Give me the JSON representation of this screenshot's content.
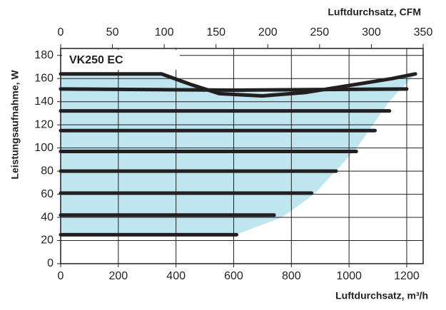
{
  "chart_data": {
    "type": "line",
    "title": "VK250 EC",
    "xlabel": "Luftdurchsatz, m³/h",
    "x2label": "Luftdurchsatz, CFM",
    "ylabel": "Leistungsaufnahme, W",
    "xlim": [
      0,
      1257
    ],
    "xticks": [
      0,
      200,
      400,
      600,
      800,
      1000,
      1200
    ],
    "x2lim": [
      0,
      350
    ],
    "x2ticks": [
      0,
      50,
      100,
      150,
      200,
      250,
      300,
      350
    ],
    "ylim": [
      0,
      186
    ],
    "yticks": [
      0,
      20,
      40,
      60,
      80,
      100,
      120,
      140,
      160,
      180
    ],
    "grid": true,
    "line_color": "#231f20",
    "region": {
      "color": "#bfe6ee",
      "x": [
        0,
        0,
        350,
        450,
        550,
        700,
        850,
        1000,
        1150,
        1230,
        1138,
        1027,
        879,
        767,
        606
      ],
      "values": [
        25,
        164,
        164,
        155,
        150,
        148,
        150,
        155,
        160,
        164,
        140,
        100,
        60,
        40,
        25
      ]
    },
    "lines": [
      {
        "x": [
          0,
          610
        ],
        "values": [
          25,
          25
        ]
      },
      {
        "x": [
          0,
          740
        ],
        "values": [
          42,
          42
        ]
      },
      {
        "x": [
          0,
          870
        ],
        "values": [
          61,
          61
        ]
      },
      {
        "x": [
          0,
          955
        ],
        "values": [
          80,
          80
        ]
      },
      {
        "x": [
          0,
          1025
        ],
        "values": [
          97,
          97
        ]
      },
      {
        "x": [
          0,
          1090
        ],
        "values": [
          115,
          115
        ]
      },
      {
        "x": [
          0,
          1140
        ],
        "values": [
          132,
          132
        ]
      },
      {
        "x": [
          0,
          600,
          1200
        ],
        "values": [
          151,
          150,
          151
        ]
      },
      {
        "x": [
          0,
          350,
          450,
          550,
          700,
          850,
          1000,
          1150,
          1230
        ],
        "values": [
          164,
          164,
          155,
          147,
          145,
          148,
          154,
          160,
          164
        ]
      }
    ]
  }
}
